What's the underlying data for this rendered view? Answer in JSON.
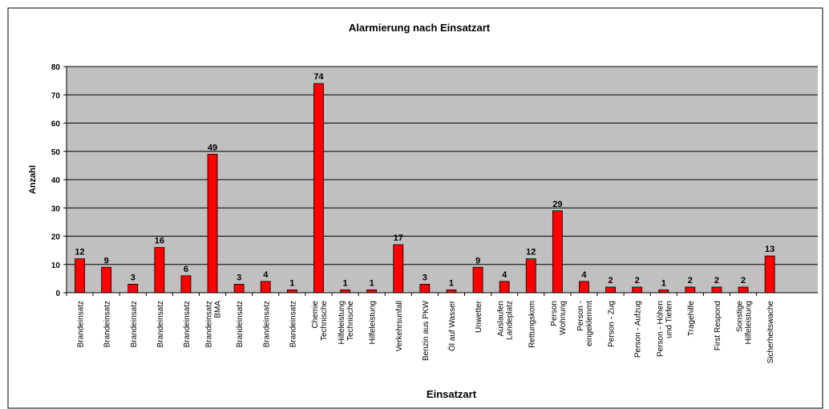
{
  "chart_data": {
    "type": "bar",
    "title": "Alarmierung nach Einsatzart",
    "x_label": "Einsatzart",
    "y_label": "Anzahl",
    "categories": [
      "Brandeinsatz",
      "Brandeinsatz",
      "Brandeinsatz",
      "Brandeinsatz",
      "Brandeinsatz",
      "Brandeinsatz\nBMA",
      "Brandeinsatz",
      "Brandeinsatz",
      "Brandeinsatz",
      "Chemie\nTechnische",
      "Hilfeleistung\nTechnische",
      "Hilfeleistung",
      "Verkehrsunfall",
      "Benzin aus PKW",
      "Öl auf Wasser",
      "Unwetter",
      "Auslaufen\nLandeplatz",
      "Rettungskom",
      "Person\nWohnung",
      "Person -\neingeklemmt",
      "Person - Zug",
      "Person - Aufzug",
      "Person - Höhen\nund Tiefen",
      "Tragehilfe",
      "First Respond",
      "Sonstige\nHilfeleistung",
      "Sicherheitswache"
    ],
    "values": [
      12,
      9,
      3,
      16,
      6,
      49,
      3,
      4,
      1,
      74,
      1,
      1,
      17,
      3,
      1,
      9,
      4,
      12,
      29,
      4,
      2,
      2,
      1,
      2,
      2,
      2,
      13
    ],
    "color": "#ff0000",
    "ylim": [
      0,
      80
    ],
    "yticks": [
      0,
      10,
      20,
      30,
      40,
      50,
      60,
      70,
      80
    ],
    "grid": true
  }
}
